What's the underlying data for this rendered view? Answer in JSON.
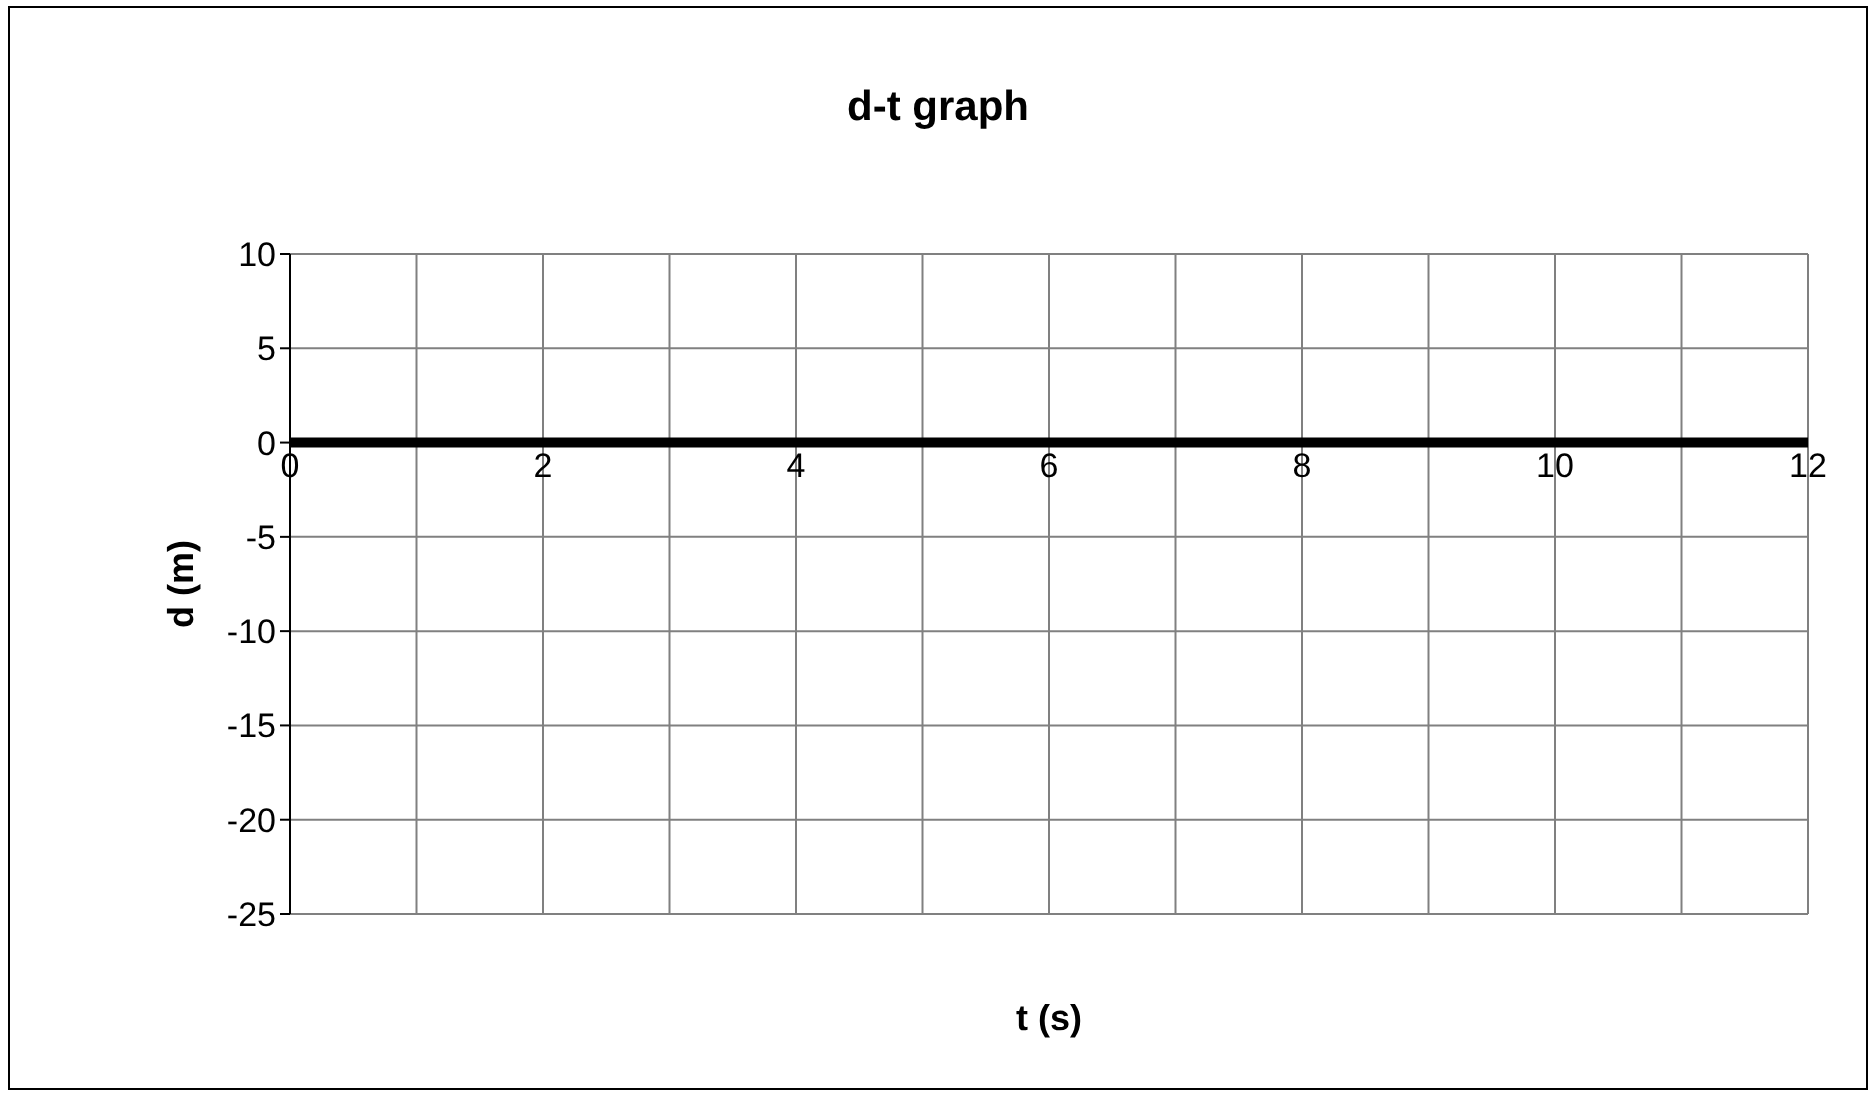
{
  "chart_data": {
    "type": "line",
    "title": "d-t graph",
    "xlabel": "t (s)",
    "ylabel": "d (m)",
    "series": [
      {
        "color": "#000000",
        "x": [
          0,
          12
        ],
        "values": [
          0,
          0
        ]
      }
    ],
    "xlim": [
      0,
      12
    ],
    "xticks": [
      0,
      {
        "value": 1,
        "label": null
      },
      2,
      {
        "value": 3,
        "label": null
      },
      4,
      {
        "value": 5,
        "label": null
      },
      6,
      {
        "value": 7,
        "label": null
      },
      8,
      {
        "value": 9,
        "label": null
      },
      10,
      {
        "value": 11,
        "label": null
      },
      12
    ],
    "ylim": [
      -25,
      10
    ],
    "yticks": [
      -25,
      -20,
      -15,
      -10,
      -5,
      0,
      5,
      10
    ],
    "grid": true,
    "legend": false,
    "marker": "none",
    "line_style": "solid"
  }
}
